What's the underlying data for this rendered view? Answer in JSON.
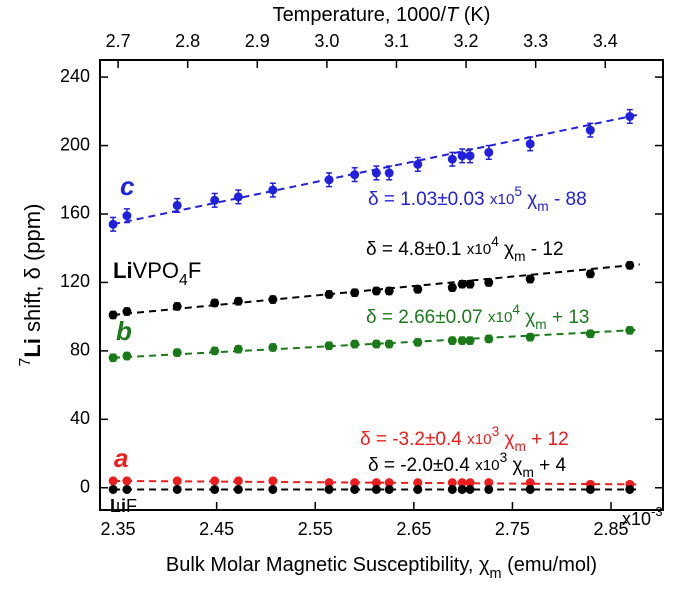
{
  "chart_data": {
    "type": "scatter",
    "x_label": [
      {
        "text": "Bulk Molar Magnetic Susceptibility"
      },
      {
        "text": ", χ"
      },
      {
        "text": "m",
        "style": "sub"
      },
      {
        "text": " (emu/mol)"
      }
    ],
    "x2_label": [
      {
        "text": "Temperature, 1000/"
      },
      {
        "text": "T",
        "style": "italic"
      },
      {
        "text": " (K)"
      }
    ],
    "y_label": [
      {
        "text": "7",
        "style": "sup"
      },
      {
        "text": "Li",
        "style": "bold"
      },
      {
        "text": " shift, δ (ppm)"
      }
    ],
    "x_multiplier": [
      {
        "text": "x10"
      },
      {
        "text": "-3",
        "style": "sup"
      }
    ],
    "xlim": [
      2.3317,
      2.9027
    ],
    "ylim": [
      -13,
      250
    ],
    "x2lim": [
      2.674,
      3.483
    ],
    "xticks": [
      2.35,
      2.45,
      2.55,
      2.65,
      2.75,
      2.85
    ],
    "yticks": [
      0,
      40,
      80,
      120,
      160,
      200,
      240
    ],
    "x2ticks": [
      2.7,
      2.8,
      2.9,
      {
        "value": 3,
        "label": "3.0"
      },
      3.1,
      3.2,
      3.3,
      3.4
    ],
    "x": [
      2.345,
      2.359,
      2.41,
      2.448,
      2.472,
      2.507,
      2.564,
      2.59,
      2.612,
      2.625,
      2.654,
      2.689,
      2.699,
      2.707,
      2.726,
      2.768,
      2.829,
      2.869
    ],
    "series": [
      {
        "color": "#2020dd",
        "error": 4,
        "values": [
          154,
          159,
          165,
          168,
          170,
          174,
          180,
          183,
          184,
          184,
          189,
          192,
          194,
          194,
          196,
          201,
          209,
          217
        ],
        "label": [
          {
            "text": "c",
            "style": "bold-italic"
          }
        ],
        "equation": [
          {
            "text": "δ = 1.03±0.03 "
          },
          {
            "text": "x10",
            "style": "small"
          },
          {
            "text": "5",
            "style": "sup"
          },
          {
            "text": " χ"
          },
          {
            "text": "m",
            "style": "sub"
          },
          {
            "text": " - 88"
          }
        ]
      },
      {
        "color": "#000000",
        "error": 2,
        "values": [
          101,
          103,
          106,
          108,
          109,
          110,
          113,
          114,
          115,
          115,
          116,
          117,
          119,
          119,
          120,
          122,
          125,
          130
        ],
        "label": [
          {
            "text": "Li",
            "style": "bold"
          },
          {
            "text": "VPO"
          },
          {
            "text": "4",
            "style": "sub"
          },
          {
            "text": "F"
          }
        ],
        "equation": [
          {
            "text": "δ = 4.8±0.1 "
          },
          {
            "text": "x10",
            "style": "small"
          },
          {
            "text": "4",
            "style": "sup"
          },
          {
            "text": " χ"
          },
          {
            "text": "m",
            "style": "sub"
          },
          {
            "text": " - 12"
          }
        ]
      },
      {
        "color": "#1a7a1a",
        "error": 2,
        "values": [
          76,
          77,
          79,
          80,
          81,
          82,
          83,
          84,
          84,
          84,
          85,
          86,
          86,
          86,
          87,
          88,
          90,
          92
        ],
        "label": [
          {
            "text": "b",
            "style": "bold-italic"
          }
        ],
        "equation": [
          {
            "text": "δ = 2.66±0.07 "
          },
          {
            "text": "x10",
            "style": "small"
          },
          {
            "text": "4",
            "style": "sup"
          },
          {
            "text": " χ"
          },
          {
            "text": "m",
            "style": "sub"
          },
          {
            "text": " + 13"
          }
        ]
      },
      {
        "color": "#ee1c1c",
        "error": 1,
        "values": [
          4,
          4,
          4,
          4,
          4,
          4,
          3,
          3,
          3,
          3,
          3,
          3,
          3,
          3,
          3,
          3,
          2,
          2
        ],
        "label": [
          {
            "text": "a",
            "style": "bold-italic"
          }
        ],
        "equation": [
          {
            "text": "δ = -3.2±0.4 "
          },
          {
            "text": "x10",
            "style": "small"
          },
          {
            "text": "3",
            "style": "sup"
          },
          {
            "text": " χ"
          },
          {
            "text": "m",
            "style": "sub"
          },
          {
            "text": " + 12"
          }
        ]
      },
      {
        "color": "#000000",
        "error": 1,
        "values": [
          -1,
          -1,
          -1,
          -1,
          -1,
          -1,
          -1,
          -1,
          -1,
          -1,
          -1,
          -1,
          -1,
          -1,
          -1,
          -1,
          -1,
          -1
        ],
        "label": [
          {
            "text": "Li",
            "style": "bold"
          },
          {
            "text": "F"
          }
        ],
        "equation": [
          {
            "text": "δ = -2.0±0.4 "
          },
          {
            "text": "x10",
            "style": "small"
          },
          {
            "text": "3",
            "style": "sup"
          },
          {
            "text": " χ"
          },
          {
            "text": "m",
            "style": "sub"
          },
          {
            "text": " + 4"
          }
        ]
      }
    ]
  }
}
